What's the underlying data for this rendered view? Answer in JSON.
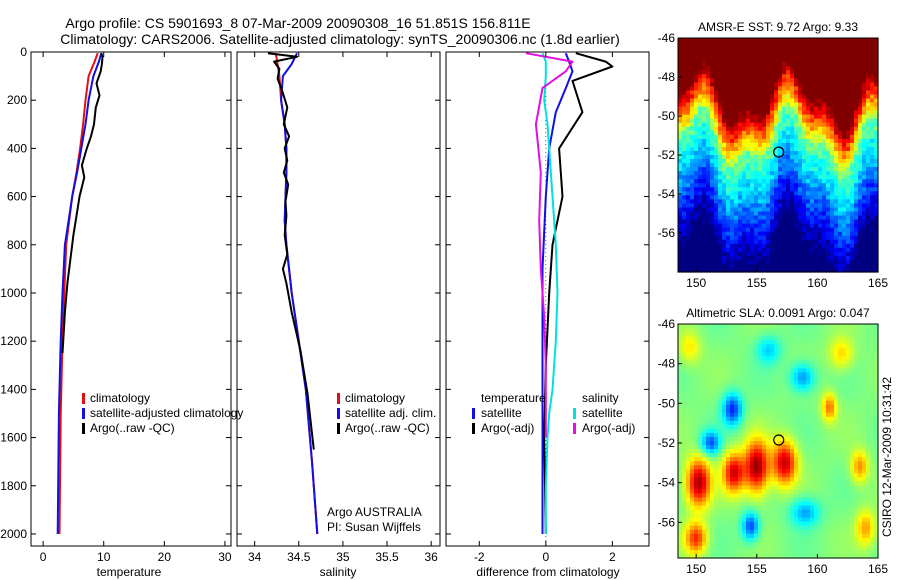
{
  "header": {
    "line1": "Argo profile: CS 5901693_8 07-Mar-2009 20090308_16 51.851S 156.811E",
    "line2": "Climatology: CARS2006. Satellite-adjusted climatology: synTS_20090306.nc (1.8d earlier)"
  },
  "credit": "CSIRO 12-Mar-2009 10:31:42",
  "colors": {
    "climatology": "#e01010",
    "satellite": "#1010e0",
    "argo": "#000000",
    "sat_sal": "#00e0e0",
    "argo_sal": "#e010e0"
  },
  "chart_data": [
    {
      "type": "line",
      "panel": "temperature",
      "xlabel": "temperature",
      "xlim": [
        -2,
        31
      ],
      "ylim": [
        0,
        2050
      ],
      "y_reversed": true,
      "xticks": [
        0,
        10,
        20,
        30
      ],
      "yticks": [
        0,
        200,
        400,
        600,
        800,
        1000,
        1200,
        1400,
        1600,
        1800,
        2000
      ],
      "legend": [
        "climatology",
        "satellite-adjusted climatology",
        "Argo(..raw -QC)"
      ],
      "series": [
        {
          "name": "climatology",
          "color": "#e01010",
          "x": [
            9.0,
            8.5,
            7.5,
            7.0,
            6.6,
            6.1,
            5.5,
            4.8,
            4.3,
            3.8,
            3.5,
            3.2,
            2.9,
            2.7
          ],
          "y": [
            5,
            40,
            100,
            200,
            300,
            400,
            500,
            600,
            700,
            800,
            1000,
            1200,
            1500,
            2000
          ]
        },
        {
          "name": "satellite-adjusted climatology",
          "color": "#1010e0",
          "x": [
            9.6,
            9.2,
            8.3,
            7.5,
            7.0,
            6.3,
            5.6,
            4.8,
            4.2,
            3.6,
            3.2,
            2.9,
            2.6,
            2.4
          ],
          "y": [
            5,
            40,
            100,
            200,
            300,
            400,
            500,
            600,
            700,
            800,
            1000,
            1200,
            1500,
            2000
          ]
        },
        {
          "name": "Argo(..raw -QC)",
          "color": "#000000",
          "x": [
            9.6,
            9.8,
            9.7,
            9.5,
            8.8,
            9.3,
            8.7,
            8.4,
            7.9,
            7.2,
            6.4,
            6.8,
            6.0,
            5.5,
            5.0,
            4.5,
            4.0,
            3.6,
            3.2
          ],
          "y": [
            5,
            20,
            50,
            80,
            130,
            180,
            230,
            300,
            350,
            400,
            470,
            520,
            600,
            680,
            760,
            860,
            960,
            1080,
            1250
          ]
        }
      ]
    },
    {
      "type": "line",
      "panel": "salinity",
      "xlabel": "salinity",
      "xlim": [
        33.8,
        36.1
      ],
      "ylim": [
        0,
        2050
      ],
      "y_reversed": true,
      "xticks": [
        34,
        34.5,
        35,
        35.5,
        36
      ],
      "legend": [
        "climatology",
        "satellite adj. clim.",
        "Argo(..raw -QC)"
      ],
      "annotation": [
        "Argo AUSTRALIA",
        "PI: Susan Wijffels"
      ],
      "series": [
        {
          "name": "climatology",
          "color": "#e01010",
          "x": [
            34.24,
            34.26,
            34.28,
            34.3,
            34.34,
            34.36,
            34.36,
            34.35,
            34.34,
            34.36,
            34.42,
            34.5,
            34.58,
            34.65,
            34.71
          ],
          "y": [
            5,
            50,
            100,
            200,
            300,
            400,
            500,
            600,
            700,
            800,
            1000,
            1200,
            1400,
            1700,
            2000
          ]
        },
        {
          "name": "satellite adj. clim.",
          "color": "#1010e0",
          "x": [
            34.48,
            34.42,
            34.32,
            34.3,
            34.34,
            34.36,
            34.36,
            34.35,
            34.34,
            34.36,
            34.42,
            34.5,
            34.58,
            34.65,
            34.71
          ],
          "y": [
            5,
            50,
            100,
            200,
            300,
            400,
            500,
            600,
            700,
            800,
            1000,
            1200,
            1400,
            1700,
            2000
          ]
        },
        {
          "name": "Argo(..raw -QC)",
          "color": "#000000",
          "x": [
            34.15,
            34.48,
            34.22,
            34.28,
            34.26,
            34.32,
            34.37,
            34.33,
            34.39,
            34.34,
            34.37,
            34.33,
            34.38,
            34.35,
            34.36,
            34.34,
            34.37,
            34.32,
            34.36,
            34.42,
            34.52,
            34.6,
            34.67
          ],
          "y": [
            5,
            20,
            40,
            70,
            110,
            170,
            230,
            300,
            350,
            400,
            450,
            500,
            550,
            620,
            680,
            760,
            840,
            900,
            960,
            1080,
            1240,
            1420,
            1650
          ]
        }
      ]
    },
    {
      "type": "line",
      "panel": "difference",
      "xlabel": "difference from climatology",
      "xlim": [
        -3,
        3.1
      ],
      "ylim": [
        0,
        2050
      ],
      "y_reversed": true,
      "xticks": [
        -2,
        0,
        2
      ],
      "legend_left": [
        "temperature",
        "satellite",
        "Argo(-adj)"
      ],
      "legend_right": [
        "salinity",
        "satellite",
        "Argo(-adj)"
      ],
      "series": [
        {
          "name": "temperature satellite",
          "color": "#1010e0",
          "x": [
            0.6,
            0.7,
            0.8,
            0.6,
            0.3,
            0.1,
            0.0,
            -0.1,
            -0.1,
            -0.1,
            -0.1,
            -0.1,
            -0.1
          ],
          "y": [
            5,
            40,
            80,
            150,
            250,
            400,
            600,
            900,
            1100,
            1300,
            1500,
            1800,
            2000
          ]
        },
        {
          "name": "temperature Argo(-adj)",
          "color": "#000000",
          "x": [
            0.9,
            1.8,
            2.0,
            0.8,
            1.1,
            0.4,
            0.5,
            0.2,
            0.1,
            0.0,
            -0.05,
            0.0
          ],
          "y": [
            5,
            40,
            60,
            120,
            250,
            400,
            600,
            800,
            1000,
            1300,
            1600,
            2000
          ]
        },
        {
          "name": "salinity satellite",
          "color": "#00e0e0",
          "x": [
            -0.1,
            0.0,
            0.0,
            -0.05,
            0.05,
            0.1,
            0.2,
            0.3,
            0.35,
            0.3,
            0.2,
            0.1,
            0.05,
            0.0,
            0.0
          ],
          "y": [
            5,
            40,
            100,
            200,
            300,
            400,
            600,
            800,
            1000,
            1200,
            1400,
            1500,
            1600,
            1800,
            2000
          ]
        },
        {
          "name": "salinity Argo(-adj)",
          "color": "#e010e0",
          "x": [
            -0.6,
            0.8,
            0.6,
            -0.1,
            -0.3,
            -0.15,
            -0.2,
            -0.15,
            -0.05,
            0.0,
            0.0
          ],
          "y": [
            5,
            40,
            80,
            150,
            300,
            500,
            700,
            900,
            1100,
            1300,
            1600
          ]
        }
      ]
    },
    {
      "type": "heatmap",
      "panel": "AMSR-E SST",
      "title": "AMSR-E SST: 9.72 Argo: 9.33",
      "xlim": [
        148.5,
        165
      ],
      "ylim": [
        -58,
        -46
      ],
      "xticks": [
        150,
        155,
        160,
        165
      ],
      "yticks": [
        -46,
        -48,
        -50,
        -52,
        -54,
        -56
      ],
      "marker": {
        "lon": 156.811,
        "lat": -51.851
      }
    },
    {
      "type": "heatmap",
      "panel": "Altimetric SLA",
      "title": "Altimetric SLA: 0.0091 Argo: 0.047",
      "xlim": [
        148.5,
        165
      ],
      "ylim": [
        -57.8,
        -46
      ],
      "xticks": [
        150,
        155,
        160,
        165
      ],
      "yticks": [
        -46,
        -48,
        -50,
        -52,
        -54,
        -56
      ],
      "marker": {
        "lon": 156.811,
        "lat": -51.851
      },
      "blobs": [
        {
          "lon": 150.2,
          "lat": -54.0,
          "sx": 1.0,
          "sy": 1.2,
          "v": 0.95
        },
        {
          "lon": 153.1,
          "lat": -53.5,
          "sx": 0.9,
          "sy": 1.0,
          "v": 0.85
        },
        {
          "lon": 155.0,
          "lat": -53.2,
          "sx": 1.0,
          "sy": 1.3,
          "v": 1.0
        },
        {
          "lon": 157.3,
          "lat": -53.0,
          "sx": 1.0,
          "sy": 1.1,
          "v": 0.9
        },
        {
          "lon": 150.0,
          "lat": -56.8,
          "sx": 0.9,
          "sy": 0.8,
          "v": 0.7
        },
        {
          "lon": 161.0,
          "lat": -50.2,
          "sx": 0.6,
          "sy": 0.7,
          "v": 0.55
        },
        {
          "lon": 163.5,
          "lat": -53.2,
          "sx": 0.7,
          "sy": 0.8,
          "v": 0.5
        },
        {
          "lon": 153.0,
          "lat": -50.3,
          "sx": 0.8,
          "sy": 0.8,
          "v": -0.7
        },
        {
          "lon": 151.2,
          "lat": -52.0,
          "sx": 0.8,
          "sy": 0.6,
          "v": -0.6
        },
        {
          "lon": 154.5,
          "lat": -56.2,
          "sx": 0.7,
          "sy": 0.7,
          "v": -0.65
        },
        {
          "lon": 158.8,
          "lat": -48.7,
          "sx": 1.0,
          "sy": 0.7,
          "v": -0.5
        },
        {
          "lon": 162.0,
          "lat": -47.5,
          "sx": 1.0,
          "sy": 0.8,
          "v": 0.35
        },
        {
          "lon": 159.0,
          "lat": -55.5,
          "sx": 1.2,
          "sy": 0.7,
          "v": -0.45
        },
        {
          "lon": 149.5,
          "lat": -47.2,
          "sx": 0.9,
          "sy": 0.8,
          "v": 0.3
        },
        {
          "lon": 164.0,
          "lat": -56.3,
          "sx": 0.8,
          "sy": 0.9,
          "v": 0.45
        },
        {
          "lon": 156.0,
          "lat": -47.3,
          "sx": 1.0,
          "sy": 0.7,
          "v": -0.35
        }
      ]
    }
  ]
}
